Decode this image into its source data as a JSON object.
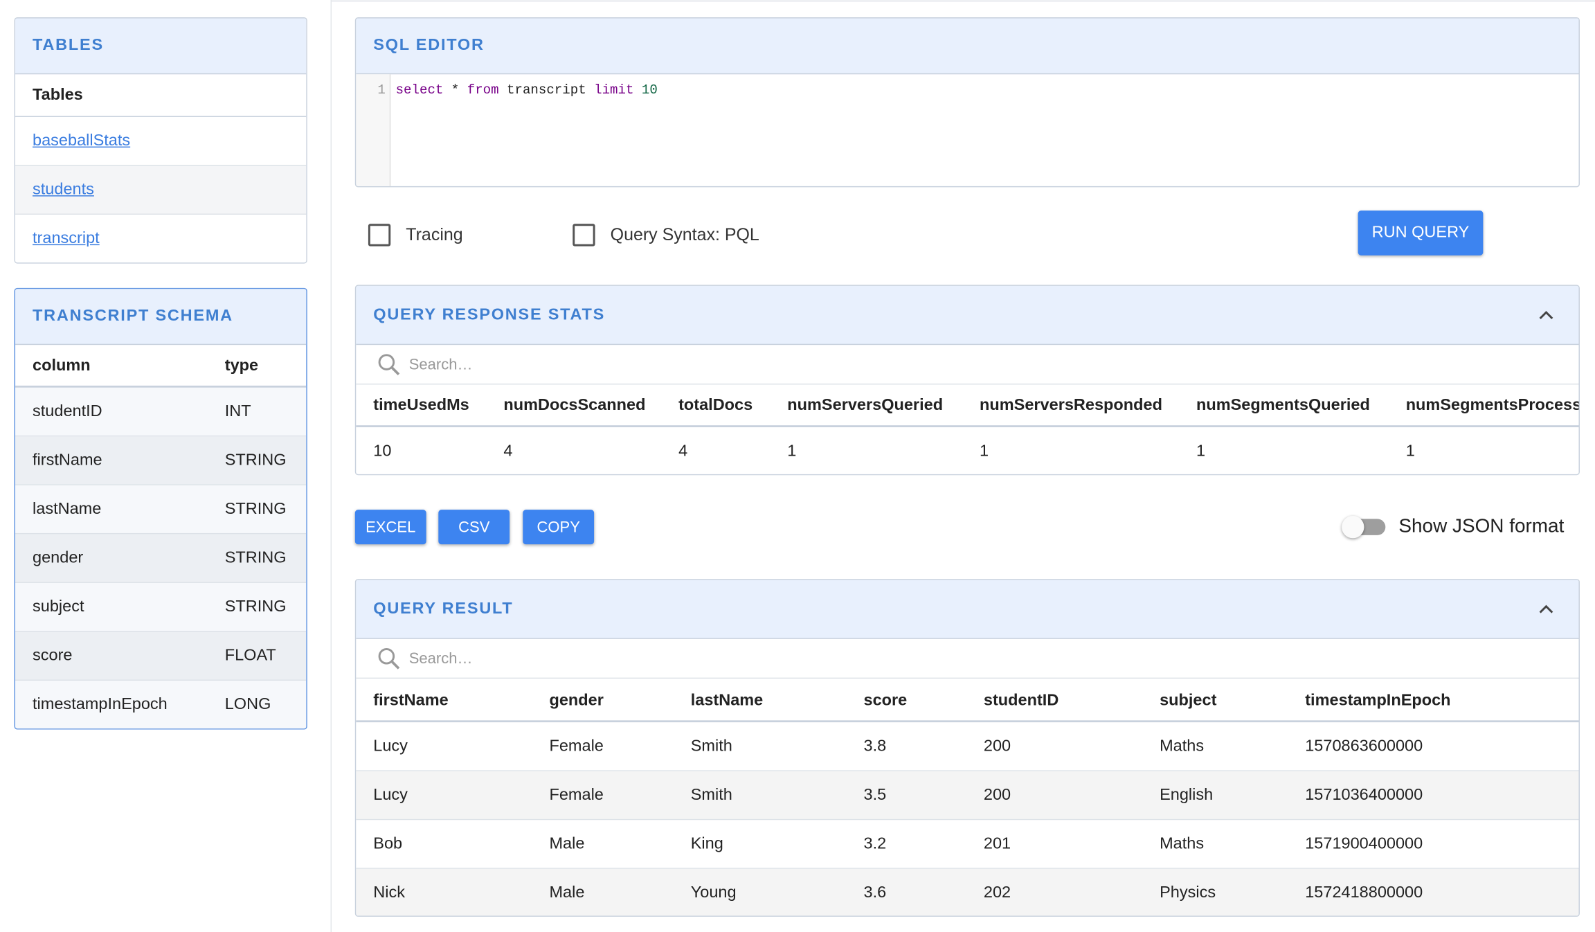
{
  "tables_panel": {
    "title": "TABLES",
    "column_header": "Tables",
    "items": [
      "baseballStats",
      "students",
      "transcript"
    ]
  },
  "schema_panel": {
    "title": "TRANSCRIPT SCHEMA",
    "headers": [
      "column",
      "type"
    ],
    "rows": [
      [
        "studentID",
        "INT"
      ],
      [
        "firstName",
        "STRING"
      ],
      [
        "lastName",
        "STRING"
      ],
      [
        "gender",
        "STRING"
      ],
      [
        "subject",
        "STRING"
      ],
      [
        "score",
        "FLOAT"
      ],
      [
        "timestampInEpoch",
        "LONG"
      ]
    ]
  },
  "sql_editor": {
    "title": "SQL EDITOR",
    "line_number": "1",
    "tokens": [
      "select",
      "*",
      "from",
      "transcript",
      "limit",
      "10"
    ]
  },
  "options": {
    "tracing": "Tracing",
    "query_syntax": "Query Syntax: PQL",
    "run_button": "RUN QUERY"
  },
  "stats_panel": {
    "title": "QUERY RESPONSE STATS",
    "search_placeholder": "Search…",
    "headers": [
      "timeUsedMs",
      "numDocsScanned",
      "totalDocs",
      "numServersQueried",
      "numServersResponded",
      "numSegmentsQueried",
      "numSegmentsProcess"
    ],
    "rows": [
      [
        10,
        4,
        4,
        1,
        1,
        1,
        1
      ]
    ]
  },
  "export": {
    "buttons": [
      "EXCEL",
      "CSV",
      "COPY"
    ],
    "json_toggle": "Show JSON format"
  },
  "result_panel": {
    "title": "QUERY RESULT",
    "search_placeholder": "Search…",
    "headers": [
      "firstName",
      "gender",
      "lastName",
      "score",
      "studentID",
      "subject",
      "timestampInEpoch"
    ],
    "rows": [
      [
        "Lucy",
        "Female",
        "Smith",
        3.8,
        200,
        "Maths",
        1570863600000
      ],
      [
        "Lucy",
        "Female",
        "Smith",
        3.5,
        200,
        "English",
        1571036400000
      ],
      [
        "Bob",
        "Male",
        "King",
        3.2,
        201,
        "Maths",
        1571900400000
      ],
      [
        "Nick",
        "Male",
        "Young",
        3.6,
        202,
        "Physics",
        1572418800000
      ]
    ]
  }
}
